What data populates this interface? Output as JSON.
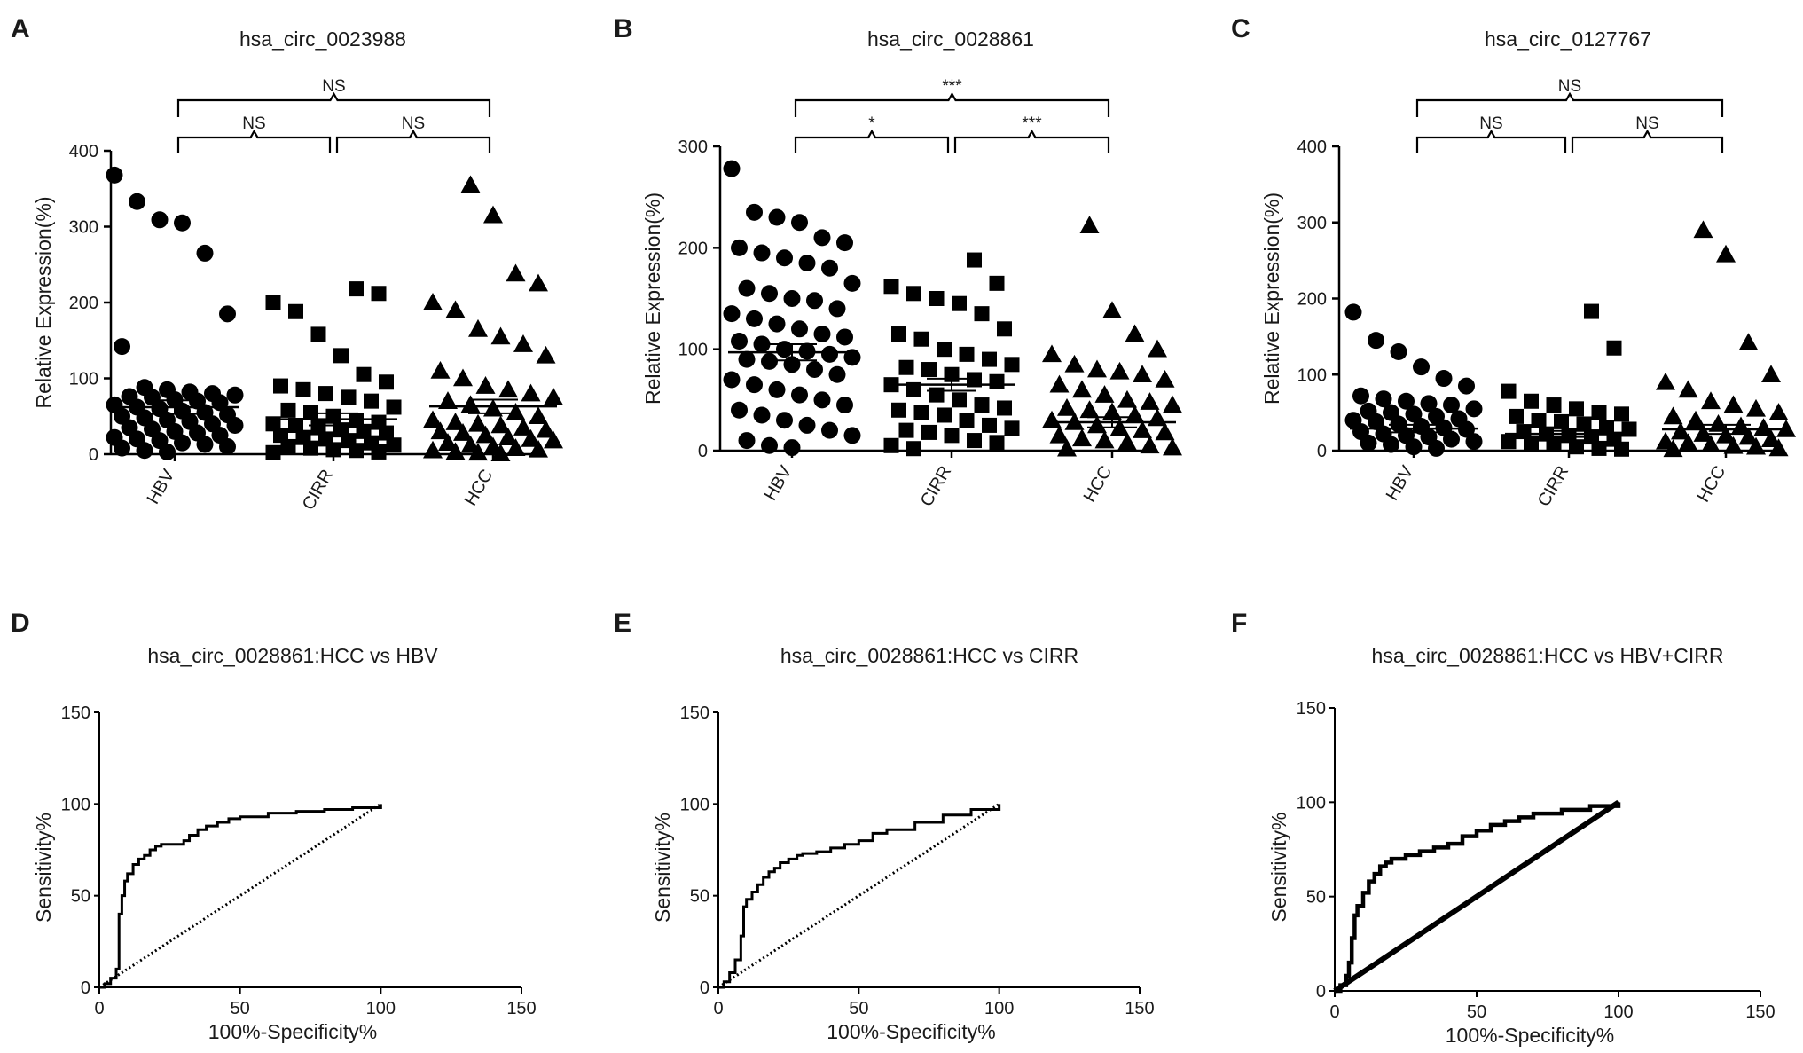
{
  "chart_data": [
    {
      "panel": "A",
      "type": "scatter",
      "title": "hsa_circ_0023988",
      "ylabel": "Relative Expression(%)",
      "xlabel": "",
      "ylim": [
        0,
        400
      ],
      "yticks": [
        0,
        100,
        200,
        300,
        400
      ],
      "categories": [
        "HBV",
        "CIRR",
        "HCC"
      ],
      "markers": [
        "circle",
        "square",
        "triangle"
      ],
      "means": [
        62,
        46,
        63
      ],
      "sem": [
        9,
        8,
        9
      ],
      "series": [
        {
          "name": "HBV",
          "values": [
            368,
            333,
            309,
            305,
            265,
            185,
            142,
            88,
            85,
            82,
            80,
            78,
            76,
            75,
            72,
            70,
            68,
            65,
            62,
            60,
            57,
            55,
            52,
            50,
            48,
            45,
            43,
            40,
            38,
            35,
            33,
            30,
            28,
            25,
            22,
            20,
            18,
            15,
            13,
            10,
            8,
            5,
            3
          ]
        },
        {
          "name": "CIRR",
          "values": [
            218,
            212,
            200,
            188,
            158,
            130,
            105,
            95,
            90,
            85,
            80,
            75,
            70,
            62,
            58,
            55,
            50,
            45,
            42,
            40,
            38,
            35,
            32,
            30,
            28,
            25,
            22,
            20,
            18,
            15,
            12,
            10,
            8,
            6,
            5,
            3,
            2
          ]
        },
        {
          "name": "HCC",
          "values": [
            355,
            315,
            238,
            225,
            200,
            190,
            165,
            155,
            145,
            130,
            110,
            100,
            90,
            85,
            80,
            75,
            70,
            65,
            60,
            55,
            50,
            45,
            42,
            40,
            38,
            35,
            32,
            30,
            28,
            25,
            22,
            20,
            18,
            15,
            12,
            10,
            8,
            6,
            5,
            3,
            2,
            1
          ]
        }
      ],
      "comparisons": [
        {
          "pair": [
            "HBV",
            "CIRR"
          ],
          "label": "NS"
        },
        {
          "pair": [
            "CIRR",
            "HCC"
          ],
          "label": "NS"
        },
        {
          "pair": [
            "HBV",
            "HCC"
          ],
          "label": "NS"
        }
      ]
    },
    {
      "panel": "B",
      "type": "scatter",
      "title": "hsa_circ_0028861",
      "ylabel": "Relative Expression(%)",
      "xlabel": "",
      "ylim": [
        0,
        300
      ],
      "yticks": [
        0,
        100,
        200,
        300
      ],
      "categories": [
        "HBV",
        "CIRR",
        "HCC"
      ],
      "markers": [
        "circle",
        "square",
        "triangle"
      ],
      "means": [
        97,
        65,
        28
      ],
      "sem": [
        8,
        6,
        5
      ],
      "series": [
        {
          "name": "HBV",
          "values": [
            278,
            235,
            230,
            225,
            210,
            205,
            200,
            195,
            190,
            185,
            180,
            165,
            160,
            155,
            150,
            148,
            140,
            135,
            130,
            125,
            120,
            115,
            112,
            108,
            105,
            100,
            98,
            95,
            92,
            90,
            88,
            85,
            80,
            75,
            70,
            65,
            60,
            55,
            50,
            45,
            40,
            35,
            30,
            25,
            20,
            15,
            10,
            5,
            3
          ]
        },
        {
          "name": "CIRR",
          "values": [
            188,
            165,
            162,
            155,
            150,
            145,
            135,
            120,
            115,
            110,
            100,
            95,
            90,
            85,
            82,
            80,
            75,
            70,
            68,
            65,
            60,
            55,
            50,
            45,
            42,
            40,
            38,
            35,
            30,
            25,
            22,
            20,
            18,
            15,
            10,
            8,
            5,
            2
          ]
        },
        {
          "name": "HCC",
          "values": [
            222,
            138,
            115,
            100,
            95,
            85,
            80,
            78,
            75,
            70,
            65,
            60,
            55,
            50,
            48,
            45,
            42,
            40,
            38,
            35,
            32,
            30,
            28,
            25,
            22,
            20,
            18,
            15,
            12,
            10,
            8,
            5,
            3,
            2
          ]
        }
      ],
      "comparisons": [
        {
          "pair": [
            "HBV",
            "CIRR"
          ],
          "label": "*"
        },
        {
          "pair": [
            "CIRR",
            "HCC"
          ],
          "label": "***"
        },
        {
          "pair": [
            "HBV",
            "HCC"
          ],
          "label": "***"
        }
      ]
    },
    {
      "panel": "C",
      "type": "scatter",
      "title": "hsa_circ_0127767",
      "ylabel": "Relative Expression(%)",
      "xlabel": "",
      "ylim": [
        0,
        400
      ],
      "yticks": [
        0,
        100,
        200,
        300,
        400
      ],
      "categories": [
        "HBV",
        "CIRR",
        "HCC"
      ],
      "markers": [
        "circle",
        "square",
        "triangle"
      ],
      "means": [
        29,
        22,
        28
      ],
      "sem": [
        5,
        4,
        6
      ],
      "series": [
        {
          "name": "HBV",
          "values": [
            182,
            145,
            130,
            110,
            95,
            85,
            72,
            68,
            65,
            62,
            60,
            55,
            52,
            50,
            48,
            45,
            42,
            40,
            38,
            35,
            32,
            30,
            28,
            25,
            22,
            20,
            18,
            15,
            12,
            10,
            8,
            5,
            3
          ]
        },
        {
          "name": "CIRR",
          "values": [
            183,
            135,
            78,
            65,
            60,
            55,
            50,
            48,
            45,
            40,
            38,
            35,
            30,
            28,
            25,
            22,
            20,
            18,
            15,
            12,
            10,
            8,
            5,
            3,
            2
          ]
        },
        {
          "name": "HCC",
          "values": [
            290,
            258,
            142,
            100,
            90,
            80,
            65,
            60,
            55,
            50,
            45,
            40,
            35,
            32,
            30,
            28,
            25,
            22,
            20,
            18,
            15,
            12,
            10,
            8,
            6,
            5,
            3,
            2
          ]
        }
      ],
      "comparisons": [
        {
          "pair": [
            "HBV",
            "CIRR"
          ],
          "label": "NS"
        },
        {
          "pair": [
            "CIRR",
            "HCC"
          ],
          "label": "NS"
        },
        {
          "pair": [
            "HBV",
            "HCC"
          ],
          "label": "NS"
        }
      ]
    },
    {
      "panel": "D",
      "type": "line",
      "title": "hsa_circ_0028861:HCC vs HBV",
      "xlabel": "100%-Specificity%",
      "ylabel": "Sensitivity%",
      "xlim": [
        0,
        150
      ],
      "ylim": [
        0,
        150
      ],
      "xticks": [
        0,
        50,
        100,
        150
      ],
      "yticks": [
        0,
        50,
        100,
        150
      ],
      "series": [
        {
          "name": "ROC",
          "x": [
            0,
            2,
            4,
            6,
            7,
            8,
            9,
            10,
            12,
            14,
            16,
            18,
            20,
            22,
            25,
            30,
            32,
            35,
            38,
            42,
            46,
            50,
            55,
            60,
            70,
            80,
            90,
            100
          ],
          "y": [
            0,
            2,
            5,
            10,
            40,
            50,
            58,
            62,
            67,
            70,
            72,
            75,
            77,
            78,
            78,
            80,
            83,
            86,
            88,
            90,
            92,
            93,
            93,
            95,
            96,
            97,
            98,
            100
          ]
        },
        {
          "name": "Reference",
          "x": [
            0,
            100
          ],
          "y": [
            0,
            100
          ]
        }
      ]
    },
    {
      "panel": "E",
      "type": "line",
      "title": "hsa_circ_0028861:HCC vs CIRR",
      "xlabel": "100%-Specificity%",
      "ylabel": "Sensitivity%",
      "xlim": [
        0,
        150
      ],
      "ylim": [
        0,
        150
      ],
      "xticks": [
        0,
        50,
        100,
        150
      ],
      "yticks": [
        0,
        50,
        100,
        150
      ],
      "series": [
        {
          "name": "ROC",
          "x": [
            0,
            2,
            4,
            6,
            8,
            9,
            10,
            12,
            14,
            16,
            18,
            20,
            22,
            25,
            28,
            30,
            35,
            40,
            45,
            50,
            55,
            60,
            70,
            80,
            90,
            100
          ],
          "y": [
            0,
            3,
            8,
            15,
            28,
            44,
            48,
            52,
            56,
            60,
            63,
            65,
            68,
            70,
            72,
            73,
            74,
            76,
            78,
            80,
            84,
            86,
            90,
            94,
            97,
            100
          ]
        },
        {
          "name": "Reference",
          "x": [
            0,
            100
          ],
          "y": [
            0,
            100
          ]
        }
      ]
    },
    {
      "panel": "F",
      "type": "line",
      "title": "hsa_circ_0028861:HCC vs HBV+CIRR",
      "xlabel": "100%-Specificity%",
      "ylabel": "Sensitivity%",
      "xlim": [
        0,
        150
      ],
      "ylim": [
        0,
        150
      ],
      "xticks": [
        0,
        50,
        100,
        150
      ],
      "yticks": [
        0,
        50,
        100,
        150
      ],
      "series": [
        {
          "name": "ROC",
          "x": [
            0,
            2,
            4,
            5,
            6,
            7,
            8,
            10,
            12,
            14,
            16,
            18,
            20,
            25,
            30,
            35,
            40,
            45,
            50,
            55,
            60,
            65,
            70,
            80,
            90,
            100
          ],
          "y": [
            0,
            3,
            8,
            15,
            28,
            40,
            45,
            52,
            58,
            62,
            66,
            68,
            70,
            72,
            74,
            76,
            78,
            82,
            85,
            88,
            90,
            92,
            94,
            96,
            98,
            100
          ]
        },
        {
          "name": "Reference",
          "x": [
            0,
            100
          ],
          "y": [
            0,
            100
          ]
        }
      ]
    }
  ]
}
